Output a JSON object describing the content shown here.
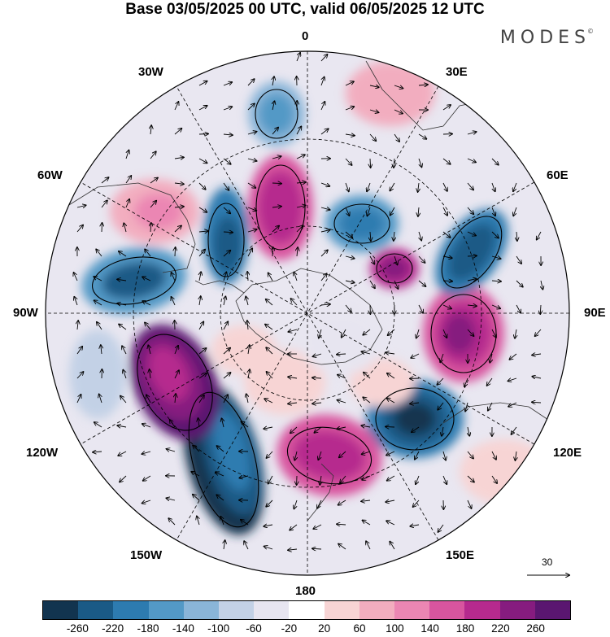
{
  "title": "Base 03/05/2025 00 UTC, valid 06/05/2025 12 UTC",
  "brand": "MODES",
  "brand_mark": "©",
  "longitude_labels": {
    "top": "0",
    "bottom": "180",
    "left": "90W",
    "right": "90E",
    "w30": "30W",
    "e30": "30E",
    "w60": "60W",
    "e60": "60E",
    "w120": "120W",
    "e120": "120E",
    "w150": "150W",
    "e150": "150E"
  },
  "vector_scale_label": "30",
  "colorbar": {
    "ticks": [
      "-260",
      "-220",
      "-180",
      "-140",
      "-100",
      "-60",
      "-20",
      "20",
      "60",
      "100",
      "140",
      "180",
      "220",
      "260"
    ],
    "colors": [
      "#12344f",
      "#1a5a86",
      "#2d7bb0",
      "#5399c6",
      "#8ab5d8",
      "#c3d1e6",
      "#e7e5f0",
      "#ffffff",
      "#f7d4d4",
      "#f2adbf",
      "#eb86b3",
      "#d8559f",
      "#b62a8e",
      "#861c7f",
      "#5a1670"
    ]
  },
  "map_style": {
    "projection": "south-polar-stereographic",
    "grid": "dashed lat/lon",
    "vectors": "wind arrows",
    "contours": "black lines"
  }
}
